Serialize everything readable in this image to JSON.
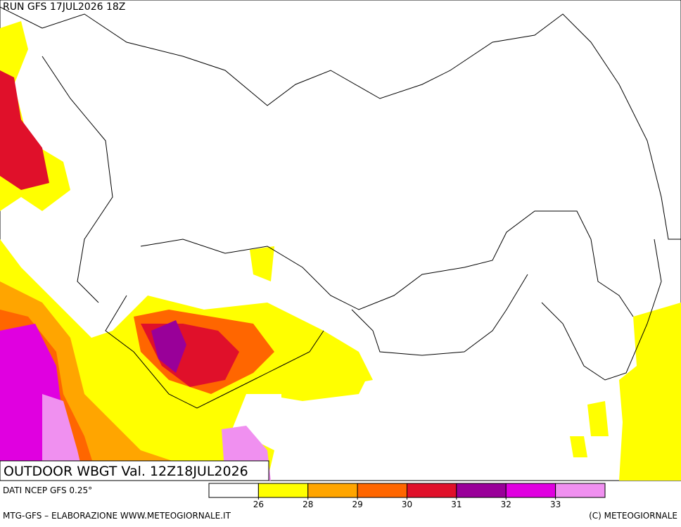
{
  "header": {
    "run": "RUN GFS 17JUL2026 18Z"
  },
  "map_title": "OUTDOOR WBGT Val. 12Z18JUL2026",
  "legend": {
    "source": "DATI NCEP GFS 0.25°",
    "colors": [
      "#ffffff",
      "#ffff00",
      "#ffa500",
      "#ff6600",
      "#e0102a",
      "#990099",
      "#e000e0",
      "#f090f0"
    ],
    "ticks": [
      26,
      28,
      29,
      30,
      31,
      32,
      33
    ]
  },
  "footer": {
    "left": "MTG-GFS – ELABORAZIONE WWW.METEOGIORNALE.IT",
    "right": "(C) METEOGIORNALE"
  }
}
